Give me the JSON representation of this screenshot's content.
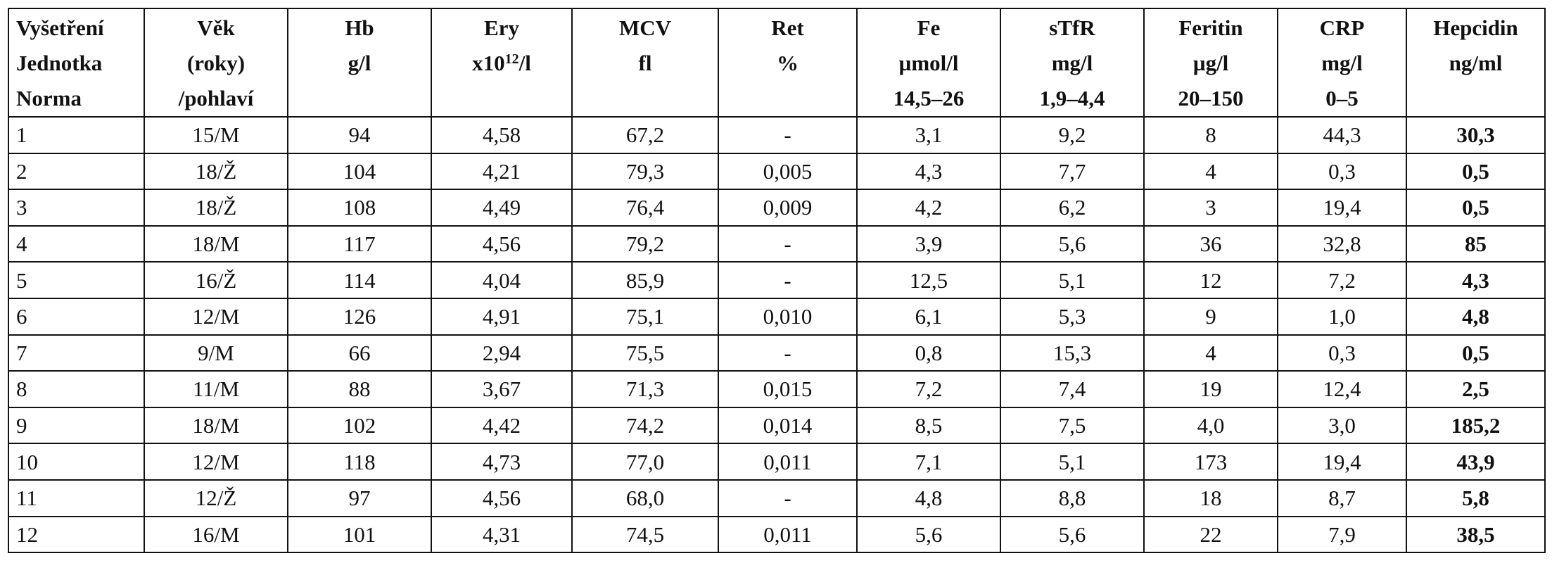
{
  "header": {
    "columns": [
      {
        "lines": [
          "Vyšetření",
          "Jednotka",
          "Norma"
        ]
      },
      {
        "lines": [
          "Věk",
          "(roky)",
          "/pohlaví"
        ]
      },
      {
        "lines": [
          "Hb",
          "g/l"
        ]
      },
      {
        "lines": [
          "Ery",
          {
            "base": "x10",
            "sup": "12",
            "rest": "/l"
          }
        ]
      },
      {
        "lines": [
          "MCV",
          "fl"
        ]
      },
      {
        "lines": [
          "Ret",
          "%"
        ]
      },
      {
        "lines": [
          "Fe",
          "µmol/l",
          "14,5–26"
        ]
      },
      {
        "lines": [
          "sTfR",
          "mg/l",
          "1,9–4,4"
        ]
      },
      {
        "lines": [
          "Feritin",
          "µg/l",
          "20–150"
        ]
      },
      {
        "lines": [
          "CRP",
          "mg/l",
          "0–5"
        ]
      },
      {
        "lines": [
          "Hepcidin",
          "ng/ml"
        ]
      }
    ]
  },
  "table": {
    "rows": [
      [
        "1",
        "15/M",
        "94",
        "4,58",
        "67,2",
        "-",
        "3,1",
        "9,2",
        "8",
        "44,3",
        "30,3"
      ],
      [
        "2",
        "18/Ž",
        "104",
        "4,21",
        "79,3",
        "0,005",
        "4,3",
        "7,7",
        "4",
        "0,3",
        "0,5"
      ],
      [
        "3",
        "18/Ž",
        "108",
        "4,49",
        "76,4",
        "0,009",
        "4,2",
        "6,2",
        "3",
        "19,4",
        "0,5"
      ],
      [
        "4",
        "18/M",
        "117",
        "4,56",
        "79,2",
        "-",
        "3,9",
        "5,6",
        "36",
        "32,8",
        "85"
      ],
      [
        "5",
        "16/Ž",
        "114",
        "4,04",
        "85,9",
        "-",
        "12,5",
        "5,1",
        "12",
        "7,2",
        "4,3"
      ],
      [
        "6",
        "12/M",
        "126",
        "4,91",
        "75,1",
        "0,010",
        "6,1",
        "5,3",
        "9",
        "1,0",
        "4,8"
      ],
      [
        "7",
        "9/M",
        "66",
        "2,94",
        "75,5",
        "-",
        "0,8",
        "15,3",
        "4",
        "0,3",
        "0,5"
      ],
      [
        "8",
        "11/M",
        "88",
        "3,67",
        "71,3",
        "0,015",
        "7,2",
        "7,4",
        "19",
        "12,4",
        "2,5"
      ],
      [
        "9",
        "18/M",
        "102",
        "4,42",
        "74,2",
        "0,014",
        "8,5",
        "7,5",
        "4,0",
        "3,0",
        "185,2"
      ],
      [
        "10",
        "12/M",
        "118",
        "4,73",
        "77,0",
        "0,011",
        "7,1",
        "5,1",
        "173",
        "19,4",
        "43,9"
      ],
      [
        "11",
        "12/Ž",
        "97",
        "4,56",
        "68,0",
        "-",
        "4,8",
        "8,8",
        "18",
        "8,7",
        "5,8"
      ],
      [
        "12",
        "16/M",
        "101",
        "4,31",
        "74,5",
        "0,011",
        "5,6",
        "5,6",
        "22",
        "7,9",
        "38,5"
      ]
    ]
  }
}
